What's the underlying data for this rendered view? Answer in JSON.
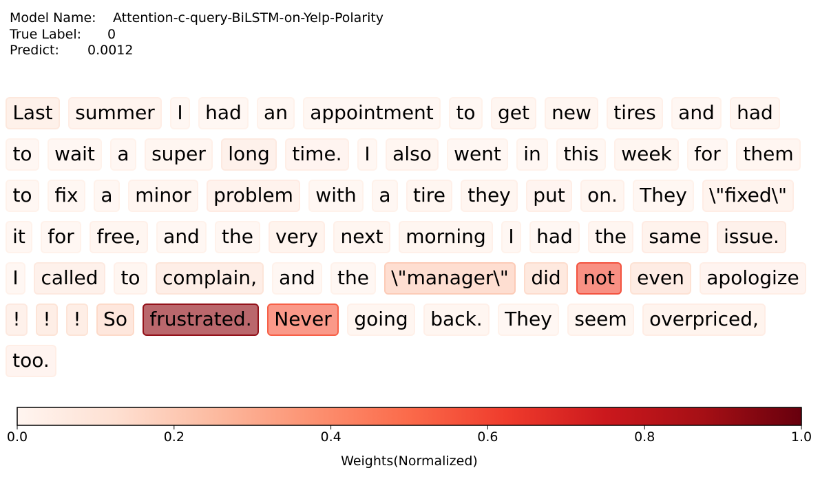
{
  "header": {
    "model_label": "Model Name:",
    "model_value": "Attention-c-query-BiLSTM-on-Yelp-Polarity",
    "true_label": "True Label:",
    "true_value": "0",
    "predict_label": "Predict:",
    "predict_value": "0.0012"
  },
  "chart_data": {
    "type": "heatmap",
    "title": "",
    "colorbar": {
      "label": "Weights(Normalized)",
      "range": [
        0.0,
        1.0
      ],
      "ticks": [
        "0.0",
        "0.2",
        "0.4",
        "0.6",
        "0.8",
        "1.0"
      ],
      "colormap": "Reds",
      "colors": [
        "#fff5f0",
        "#fee0d2",
        "#fcbba1",
        "#fc9272",
        "#fb6a4a",
        "#ef3b2c",
        "#cb181d",
        "#a50f15",
        "#67000d"
      ]
    },
    "tokens": [
      {
        "text": "Last",
        "weight": 0.08
      },
      {
        "text": "summer",
        "weight": 0.05
      },
      {
        "text": "I",
        "weight": 0.02
      },
      {
        "text": "had",
        "weight": 0.02
      },
      {
        "text": "an",
        "weight": 0.02
      },
      {
        "text": "appointment",
        "weight": 0.02
      },
      {
        "text": "to",
        "weight": 0.02
      },
      {
        "text": "get",
        "weight": 0.03
      },
      {
        "text": "new",
        "weight": 0.03
      },
      {
        "text": "tires",
        "weight": 0.03
      },
      {
        "text": "and",
        "weight": 0.02
      },
      {
        "text": "had",
        "weight": 0.03
      },
      {
        "text": "to",
        "weight": 0.02
      },
      {
        "text": "wait",
        "weight": 0.02
      },
      {
        "text": "a",
        "weight": 0.02
      },
      {
        "text": "super",
        "weight": 0.03
      },
      {
        "text": "long",
        "weight": 0.07
      },
      {
        "text": "time.",
        "weight": 0.04
      },
      {
        "text": "I",
        "weight": 0.02
      },
      {
        "text": "also",
        "weight": 0.03
      },
      {
        "text": "went",
        "weight": 0.02
      },
      {
        "text": "in",
        "weight": 0.02
      },
      {
        "text": "this",
        "weight": 0.02
      },
      {
        "text": "week",
        "weight": 0.03
      },
      {
        "text": "for",
        "weight": 0.02
      },
      {
        "text": "them",
        "weight": 0.03
      },
      {
        "text": "to",
        "weight": 0.02
      },
      {
        "text": "fix",
        "weight": 0.02
      },
      {
        "text": "a",
        "weight": 0.02
      },
      {
        "text": "minor",
        "weight": 0.03
      },
      {
        "text": "problem",
        "weight": 0.06
      },
      {
        "text": "with",
        "weight": 0.02
      },
      {
        "text": "a",
        "weight": 0.02
      },
      {
        "text": "tire",
        "weight": 0.03
      },
      {
        "text": "they",
        "weight": 0.03
      },
      {
        "text": "put",
        "weight": 0.04
      },
      {
        "text": "on.",
        "weight": 0.03
      },
      {
        "text": "They",
        "weight": 0.02
      },
      {
        "text": "\\\"fixed\\\"",
        "weight": 0.05
      },
      {
        "text": "it",
        "weight": 0.02
      },
      {
        "text": "for",
        "weight": 0.02
      },
      {
        "text": "free,",
        "weight": 0.03
      },
      {
        "text": "and",
        "weight": 0.02
      },
      {
        "text": "the",
        "weight": 0.02
      },
      {
        "text": "very",
        "weight": 0.05
      },
      {
        "text": "next",
        "weight": 0.03
      },
      {
        "text": "morning",
        "weight": 0.03
      },
      {
        "text": "I",
        "weight": 0.02
      },
      {
        "text": "had",
        "weight": 0.02
      },
      {
        "text": "the",
        "weight": 0.03
      },
      {
        "text": "same",
        "weight": 0.06
      },
      {
        "text": "issue.",
        "weight": 0.07
      },
      {
        "text": "I",
        "weight": 0.02
      },
      {
        "text": "called",
        "weight": 0.07
      },
      {
        "text": "to",
        "weight": 0.03
      },
      {
        "text": "complain,",
        "weight": 0.1
      },
      {
        "text": "and",
        "weight": 0.02
      },
      {
        "text": "the",
        "weight": 0.02
      },
      {
        "text": "\\\"manager\\\"",
        "weight": 0.2
      },
      {
        "text": "did",
        "weight": 0.14
      },
      {
        "text": "not",
        "weight": 0.58
      },
      {
        "text": "even",
        "weight": 0.12
      },
      {
        "text": "apologize",
        "weight": 0.04
      },
      {
        "text": "!",
        "weight": 0.07
      },
      {
        "text": "!",
        "weight": 0.11
      },
      {
        "text": "!",
        "weight": 0.11
      },
      {
        "text": "So",
        "weight": 0.15
      },
      {
        "text": "frustrated.",
        "weight": 0.92
      },
      {
        "text": "Never",
        "weight": 0.54
      },
      {
        "text": "going",
        "weight": 0.03
      },
      {
        "text": "back.",
        "weight": 0.03
      },
      {
        "text": "They",
        "weight": 0.02
      },
      {
        "text": "seem",
        "weight": 0.03
      },
      {
        "text": "overpriced,",
        "weight": 0.05
      },
      {
        "text": "too.",
        "weight": 0.04
      }
    ]
  }
}
